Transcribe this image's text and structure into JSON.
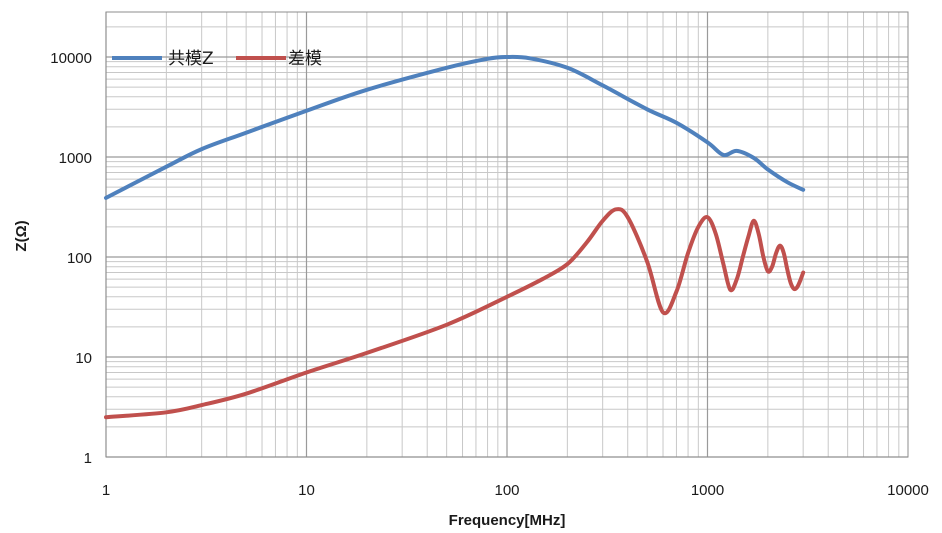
{
  "chart_data": {
    "type": "line",
    "xlabel": "Frequency[MHz]",
    "ylabel": "Z(Ω)",
    "x_scale": "log",
    "y_scale": "log",
    "xlim": [
      1,
      10000
    ],
    "ylim": [
      1,
      20000
    ],
    "x_ticks": [
      1,
      10,
      100,
      1000,
      10000
    ],
    "x_tick_labels": [
      "1",
      "10",
      "100",
      "1000",
      "10000"
    ],
    "y_ticks": [
      1,
      10,
      100,
      1000,
      10000
    ],
    "y_tick_labels": [
      "1",
      "10",
      "100",
      "1000",
      "10000"
    ],
    "grid": true,
    "legend_position": "top-left",
    "series": [
      {
        "name": "共模Z",
        "color": "#4f81bd",
        "x": [
          1,
          2,
          3,
          5,
          10,
          20,
          50,
          80,
          100,
          130,
          200,
          300,
          500,
          700,
          1000,
          1200,
          1400,
          1700,
          2000,
          2500,
          3000
        ],
        "y": [
          390,
          800,
          1200,
          1750,
          2900,
          4700,
          7800,
          9600,
          10000,
          9700,
          7800,
          5200,
          3000,
          2200,
          1400,
          1050,
          1150,
          980,
          750,
          560,
          470
        ]
      },
      {
        "name": "差模",
        "color": "#c0504d",
        "x": [
          1,
          2,
          3,
          5,
          10,
          20,
          50,
          100,
          150,
          200,
          250,
          300,
          350,
          400,
          500,
          600,
          700,
          800,
          900,
          1000,
          1100,
          1200,
          1300,
          1400,
          1500,
          1600,
          1700,
          1800,
          1900,
          2000,
          2100,
          2200,
          2300,
          2400,
          2500,
          2600,
          2700,
          2800,
          2900,
          3000
        ],
        "y": [
          2.5,
          2.8,
          3.3,
          4.3,
          7,
          11,
          21,
          40,
          60,
          85,
          140,
          230,
          300,
          250,
          90,
          28,
          45,
          110,
          200,
          250,
          170,
          85,
          47,
          60,
          100,
          160,
          230,
          170,
          100,
          72,
          80,
          110,
          130,
          110,
          75,
          55,
          48,
          50,
          58,
          70
        ]
      }
    ]
  }
}
